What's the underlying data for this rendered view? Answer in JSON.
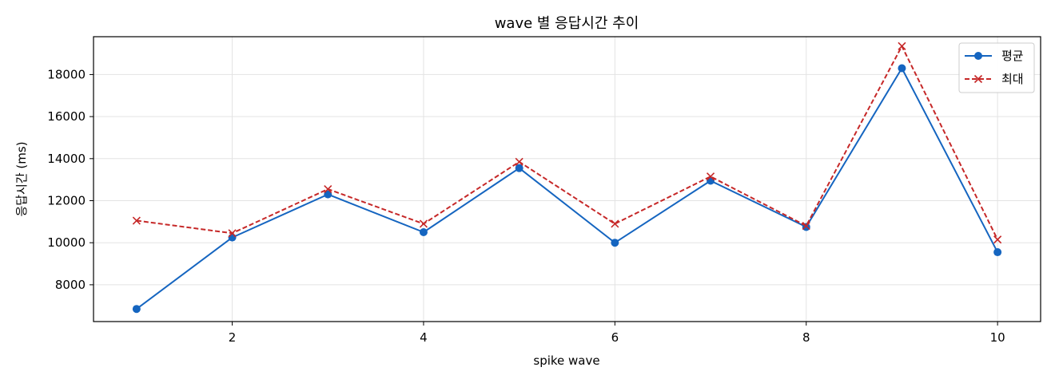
{
  "chart_data": {
    "type": "line",
    "title": "wave 별 응답시간 추이",
    "xlabel": "spike wave",
    "ylabel": "응답시간 (ms)",
    "x": [
      1,
      2,
      3,
      4,
      5,
      6,
      7,
      8,
      9,
      10
    ],
    "xlim": [
      0.55,
      10.45
    ],
    "ylim": [
      6250,
      19800
    ],
    "xticks": [
      2,
      4,
      6,
      8,
      10
    ],
    "yticks": [
      8000,
      10000,
      12000,
      14000,
      16000,
      18000
    ],
    "grid": true,
    "legend_position": "top-right",
    "series": [
      {
        "name": "평균",
        "values": [
          6850,
          10250,
          12300,
          10500,
          13550,
          10000,
          12950,
          10750,
          18300,
          9550
        ],
        "color": "#1565c0",
        "line_style": "solid",
        "marker": "circle"
      },
      {
        "name": "최대",
        "values": [
          11050,
          10450,
          12550,
          10900,
          13850,
          10900,
          13150,
          10800,
          19350,
          10150
        ],
        "color": "#c62828",
        "line_style": "dashed",
        "marker": "x"
      }
    ]
  }
}
